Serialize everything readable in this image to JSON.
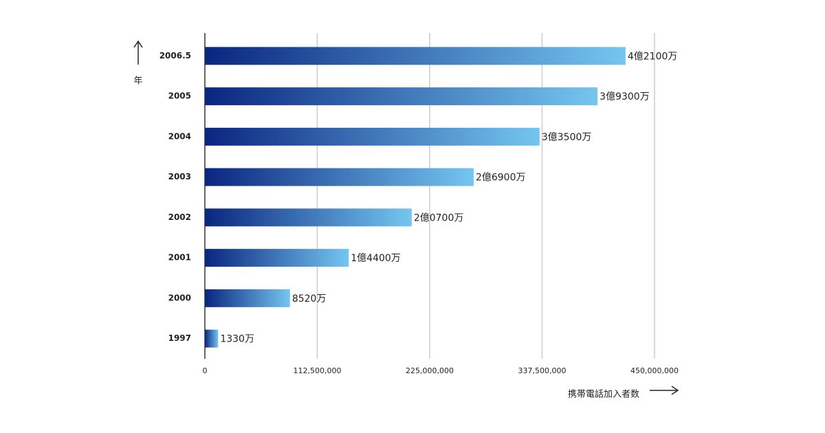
{
  "chart_data": {
    "type": "bar",
    "orientation": "horizontal",
    "categories": [
      "2006.5",
      "2005",
      "2004",
      "2003",
      "2002",
      "2001",
      "2000",
      "1997"
    ],
    "values": [
      421000000,
      393000000,
      335000000,
      269000000,
      207000000,
      144000000,
      85200000,
      13300000
    ],
    "value_labels": [
      "4億2100万",
      "3億9300万",
      "3億3500万",
      "2億6900万",
      "2億0700万",
      "1億4400万",
      "8520万",
      "1330万"
    ],
    "gradient": [
      "#0a2680",
      "#74c6f0"
    ],
    "xlim": [
      0,
      450000000
    ],
    "xticks": [
      0,
      {
        "value": 112500000,
        "label": "112,500,000"
      },
      {
        "value": 225000000,
        "label": "225,000,000"
      },
      {
        "value": 337500000,
        "label": "337,500,000"
      },
      {
        "value": 450000000,
        "label": "450,000,000"
      }
    ],
    "grid": true,
    "y_label": "年",
    "x_label": "携帯電話加入者数"
  }
}
